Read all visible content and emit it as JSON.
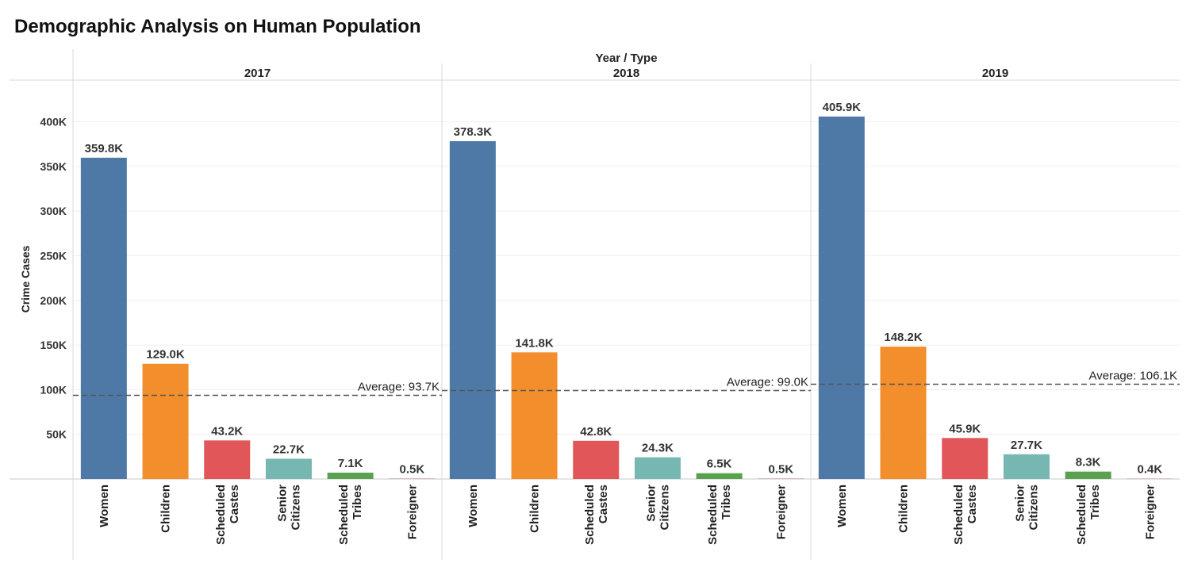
{
  "chart_data": {
    "type": "bar",
    "title": "Demographic Analysis on Human Population",
    "column_header_title": "Year / Type",
    "ylabel": "Crime Cases",
    "ylim": [
      0,
      450000
    ],
    "yticks": [
      50000,
      100000,
      150000,
      200000,
      250000,
      300000,
      350000,
      400000
    ],
    "ytick_labels": [
      "50K",
      "100K",
      "150K",
      "200K",
      "250K",
      "300K",
      "350K",
      "400K"
    ],
    "grid": true,
    "categories": [
      {
        "label": "Women",
        "lines": [
          "Women"
        ],
        "color": "#4e79a7"
      },
      {
        "label": "Children",
        "lines": [
          "Children"
        ],
        "color": "#f28e2b"
      },
      {
        "label": "Scheduled Castes",
        "lines": [
          "Scheduled",
          "Castes"
        ],
        "color": "#e15759"
      },
      {
        "label": "Senior Citizens",
        "lines": [
          "Senior",
          "Citizens"
        ],
        "color": "#76b7b2"
      },
      {
        "label": "Scheduled Tribes",
        "lines": [
          "Scheduled",
          "Tribes"
        ],
        "color": "#59a14f"
      },
      {
        "label": "Foreigner",
        "lines": [
          "Foreigner"
        ],
        "color": "#b07aa1"
      }
    ],
    "panels": [
      {
        "year": "2017",
        "values": [
          359800,
          129000,
          43200,
          22700,
          7100,
          500
        ],
        "value_labels": [
          "359.8K",
          "129.0K",
          "43.2K",
          "22.7K",
          "7.1K",
          "0.5K"
        ],
        "average": 93700,
        "average_label": "Average: 93.7K"
      },
      {
        "year": "2018",
        "values": [
          378300,
          141800,
          42800,
          24300,
          6500,
          500
        ],
        "value_labels": [
          "378.3K",
          "141.8K",
          "42.8K",
          "24.3K",
          "6.5K",
          "0.5K"
        ],
        "average": 99000,
        "average_label": "Average: 99.0K"
      },
      {
        "year": "2019",
        "values": [
          405900,
          148200,
          45900,
          27700,
          8300,
          400
        ],
        "value_labels": [
          "405.9K",
          "148.2K",
          "45.9K",
          "27.7K",
          "8.3K",
          "0.4K"
        ],
        "average": 106100,
        "average_label": "Average: 106.1K"
      }
    ]
  }
}
